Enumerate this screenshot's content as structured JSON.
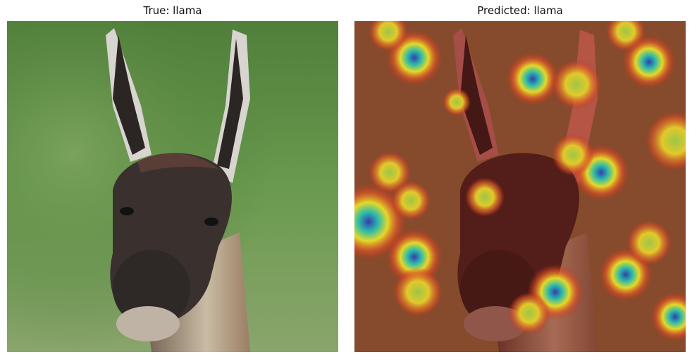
{
  "panels": [
    {
      "title": "True: llama",
      "image": "llama-photo"
    },
    {
      "title": "Predicted: llama",
      "image": "llama-photo-with-heatmap-overlay"
    }
  ],
  "colors": {
    "background": "#ffffff",
    "grass": "#5f8f48",
    "llama_face": "#3a312f",
    "heatmap_hot": "#b21b1b",
    "heatmap_mid": "#f0e32a",
    "heatmap_cool": "#1f3fb0"
  }
}
